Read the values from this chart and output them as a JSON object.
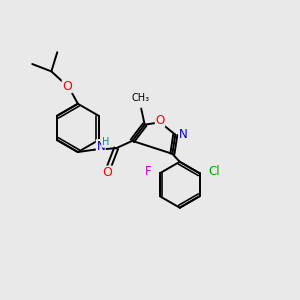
{
  "bg_color": "#e9e9e9",
  "bond_color": "#000000",
  "atom_colors": {
    "O": "#ff0000",
    "N": "#0000cd",
    "F": "#cc00cc",
    "Cl": "#00aa00",
    "H": "#008b8b",
    "C": "#000000"
  },
  "font_size": 8.0,
  "lw": 1.4,
  "double_off": 0.009
}
